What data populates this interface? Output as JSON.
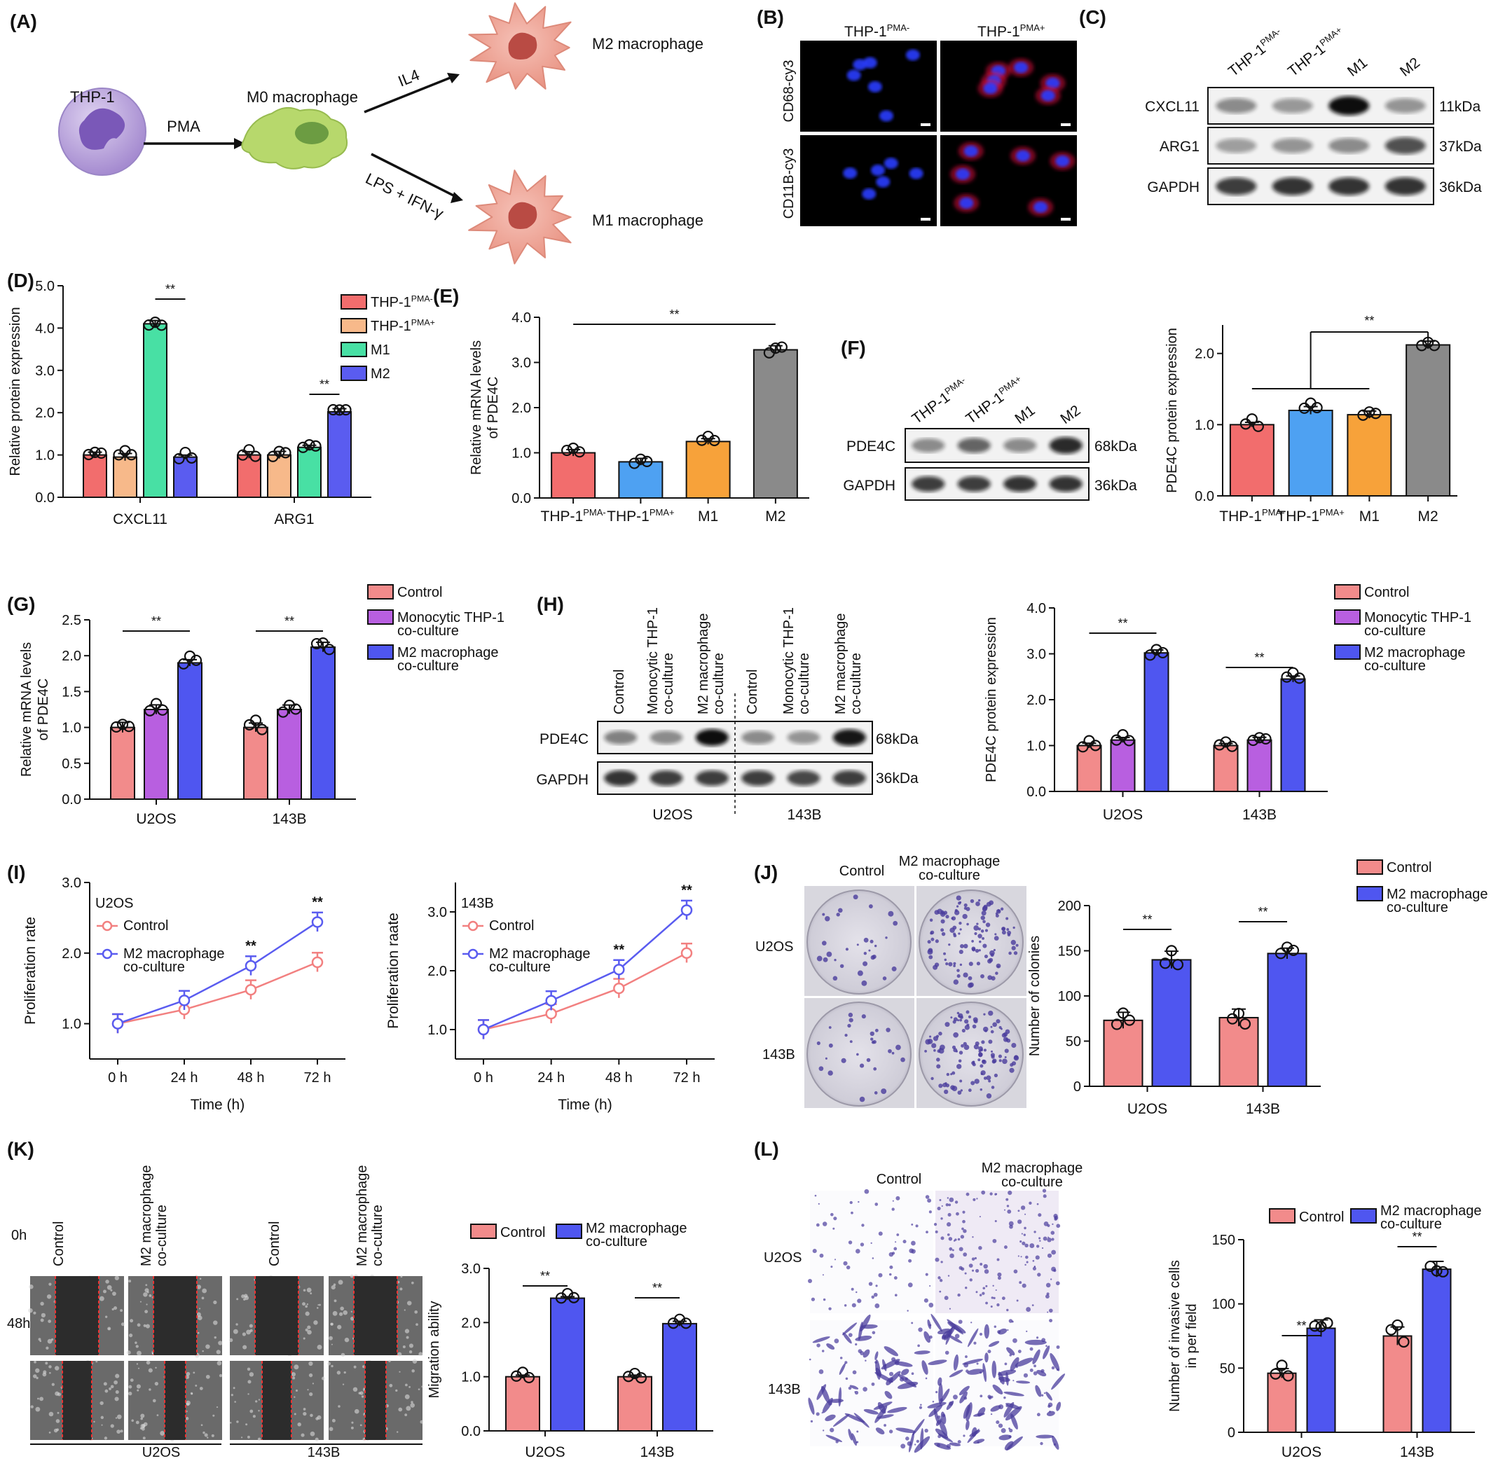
{
  "colors": {
    "thp_pma_minus": "#f26d6d",
    "thp_pma_plus_d": "#f7b98a",
    "m1_d": "#48e0a4",
    "m2_d": "#5a5cf0",
    "m2_e": "#8a8a8a",
    "thp_pma_plus_e": "#4ea1f2",
    "m1_e": "#f7a23a",
    "control": "#f28b8b",
    "thp_mono": "#b85fe0",
    "m2_coculture": "#4f56f0",
    "control_line": "#f28080",
    "m2_line": "#5a5cf0",
    "pink_cell": "#f0a89c",
    "thp_cell": "#b9a4dc",
    "m0_cell": "#b6d96a",
    "fluor_nucleus": "#2a3cff",
    "fluor_red": "#e01040",
    "stain": "#4a3c9c"
  },
  "panels": {
    "A": {
      "label": "(A)",
      "thp1": "THP-1",
      "pma": "PMA",
      "m0": "M0 macrophage",
      "il4": "IL4",
      "lps": "LPS + IFN-γ",
      "m2": "M2 macrophage",
      "m1": "M1 macrophage",
      "icons": [
        "thp1-cell-icon",
        "m0-macrophage-icon",
        "m2-macrophage-icon",
        "m1-macrophage-icon"
      ]
    },
    "B": {
      "label": "(B)",
      "col1": "THP-1",
      "col1_sup": "PMA-",
      "col2": "THP-1",
      "col2_sup": "PMA+",
      "row1": "CD68-cy3",
      "row2": "CD11B-cy3"
    },
    "C": {
      "label": "(C)",
      "lanes": [
        {
          "main": "THP-1",
          "sup": "PMA-"
        },
        {
          "main": "THP-1",
          "sup": "PMA+"
        },
        {
          "main": "M1",
          "sup": ""
        },
        {
          "main": "M2",
          "sup": ""
        }
      ],
      "rows": [
        {
          "name": "CXCL11",
          "kda": "11kDa"
        },
        {
          "name": "ARG1",
          "kda": "37kDa"
        },
        {
          "name": "GAPDH",
          "kda": "36kDa"
        }
      ]
    },
    "F_blot": {
      "label": "(F)",
      "lanes": [
        {
          "main": "THP-1",
          "sup": "PMA-"
        },
        {
          "main": "THP-1",
          "sup": "PMA+"
        },
        {
          "main": "M1",
          "sup": ""
        },
        {
          "main": "M2",
          "sup": ""
        }
      ],
      "rows": [
        {
          "name": "PDE4C",
          "kda": "68kDa"
        },
        {
          "name": "GAPDH",
          "kda": "36kDa"
        }
      ]
    },
    "H_blot": {
      "label": "(H)",
      "lanes": [
        "Control",
        "Monocytic THP-1|co-culture",
        "M2 macrophage|co-culture",
        "Control",
        "Monocytic THP-1|co-culture",
        "M2 macrophage|co-culture"
      ],
      "rows": [
        {
          "name": "PDE4C",
          "kda": "68kDa"
        },
        {
          "name": "GAPDH",
          "kda": "36kDa"
        }
      ],
      "groups": [
        "U2OS",
        "143B"
      ]
    },
    "J_images": {
      "label": "(J)",
      "col1": "Control",
      "col2": "M2 macrophage|co-culture",
      "row1": "U2OS",
      "row2": "143B"
    },
    "K_images": {
      "label": "(K)",
      "cols": [
        "Control",
        "M2 macrophage|co-culture",
        "Control",
        "M2 macrophage|co-culture"
      ],
      "rows": [
        "0h",
        "48h"
      ],
      "groups": [
        "U2OS",
        "143B"
      ]
    },
    "L_images": {
      "label": "(L)",
      "col1": "Control",
      "col2": "M2 macrophage|co-culture",
      "row1": "U2OS",
      "row2": "143B"
    },
    "I": {
      "label": "(I)"
    },
    "D": {
      "label": "(D)"
    },
    "E": {
      "label": "(E)"
    },
    "G": {
      "label": "(G)"
    }
  },
  "chart_data": [
    {
      "id": "D",
      "type": "bar",
      "ylabel": "Relative protein expression",
      "ylim": [
        0,
        5
      ],
      "yticks": [
        "0.0",
        "1.0",
        "2.0",
        "3.0",
        "4.0",
        "5.0"
      ],
      "categories": [
        "CXCL11",
        "ARG1"
      ],
      "series": [
        {
          "name": "THP-1",
          "sup": "PMA-",
          "values": [
            1.0,
            1.0
          ]
        },
        {
          "name": "THP-1",
          "sup": "PMA+",
          "values": [
            0.95,
            1.0
          ]
        },
        {
          "name": "M1",
          "sup": "",
          "values": [
            4.1,
            1.18
          ]
        },
        {
          "name": "M2",
          "sup": "",
          "values": [
            0.95,
            2.02
          ]
        }
      ],
      "significance": [
        "**",
        "**"
      ],
      "legend": "top-right"
    },
    {
      "id": "E",
      "type": "bar",
      "ylabel": "Relative mRNA levels|of PDE4C",
      "ylim": [
        0,
        4
      ],
      "yticks": [
        "0.0",
        "1.0",
        "2.0",
        "3.0",
        "4.0"
      ],
      "categories": [
        {
          "main": "THP-1",
          "sup": "PMA-"
        },
        {
          "main": "THP-1",
          "sup": "PMA+"
        },
        {
          "main": "M1",
          "sup": ""
        },
        {
          "main": "M2",
          "sup": ""
        }
      ],
      "values": [
        1.0,
        0.8,
        1.25,
        3.28
      ],
      "significance": "**"
    },
    {
      "id": "F",
      "type": "bar",
      "ylabel": "PDE4C protein expression",
      "ylim": [
        0,
        2.4
      ],
      "yticks": [
        "0.0",
        "1.0",
        "2.0"
      ],
      "categories": [
        {
          "main": "THP-1",
          "sup": "PMA-"
        },
        {
          "main": "THP-1",
          "sup": "PMA+"
        },
        {
          "main": "M1",
          "sup": ""
        },
        {
          "main": "M2",
          "sup": ""
        }
      ],
      "values": [
        1.0,
        1.2,
        1.14,
        2.12
      ],
      "significance": "**"
    },
    {
      "id": "G",
      "type": "bar",
      "ylabel": "Relative mRNA levels|of PDE4C",
      "ylim": [
        0,
        2.5
      ],
      "yticks": [
        "0.0",
        "0.5",
        "1.0",
        "1.5",
        "2.0",
        "2.5"
      ],
      "categories": [
        "U2OS",
        "143B"
      ],
      "series": [
        {
          "name": "Control",
          "values": [
            1.0,
            1.0
          ]
        },
        {
          "name": "Monocytic THP-1|co-culture",
          "values": [
            1.25,
            1.25
          ]
        },
        {
          "name": "M2 macrophage|co-culture",
          "values": [
            1.9,
            2.12
          ]
        }
      ],
      "significance": [
        "**",
        "**"
      ],
      "legend": "top-right"
    },
    {
      "id": "H",
      "type": "bar",
      "ylabel": "PDE4C protein expression",
      "ylim": [
        0,
        4
      ],
      "yticks": [
        "0.0",
        "1.0",
        "2.0",
        "3.0",
        "4.0"
      ],
      "categories": [
        "U2OS",
        "143B"
      ],
      "series": [
        {
          "name": "Control",
          "values": [
            1.0,
            1.0
          ]
        },
        {
          "name": "Monocytic THP-1|co-culture",
          "values": [
            1.12,
            1.12
          ]
        },
        {
          "name": "M2 macrophage|co-culture",
          "values": [
            3.02,
            2.45
          ]
        }
      ],
      "significance": [
        "**",
        "**"
      ],
      "legend": "top-right"
    },
    {
      "id": "I1",
      "type": "line",
      "title": "U2OS",
      "xlabel": "Time (h)",
      "ylabel": "Proliferation rate",
      "x": [
        "0 h",
        "24 h",
        "48 h",
        "72 h"
      ],
      "ylim": [
        0.5,
        3.0
      ],
      "yticks": [
        "1.0",
        "2.0",
        "3.0"
      ],
      "series": [
        {
          "name": "Control",
          "values": [
            1.0,
            1.2,
            1.48,
            1.87
          ]
        },
        {
          "name": "M2 macrophage|co-culture",
          "values": [
            1.0,
            1.33,
            1.82,
            2.44
          ]
        }
      ],
      "significance": [
        "",
        "",
        "**",
        "**"
      ]
    },
    {
      "id": "I2",
      "type": "line",
      "title": "143B",
      "xlabel": "Time (h)",
      "ylabel": "Proliferation raate",
      "x": [
        "0 h",
        "24 h",
        "48 h",
        "72 h"
      ],
      "ylim": [
        0.5,
        3.5
      ],
      "yticks": [
        "1.0",
        "2.0",
        "3.0"
      ],
      "series": [
        {
          "name": "Control",
          "values": [
            1.0,
            1.27,
            1.7,
            2.3
          ]
        },
        {
          "name": "M2 macrophage|co-culture",
          "values": [
            1.0,
            1.49,
            2.02,
            3.03
          ]
        }
      ],
      "significance": [
        "",
        "",
        "**",
        "**"
      ]
    },
    {
      "id": "J",
      "type": "bar",
      "ylabel": "Number of colonies",
      "ylim": [
        0,
        200
      ],
      "yticks": [
        "0",
        "50",
        "100",
        "150",
        "200"
      ],
      "categories": [
        "U2OS",
        "143B"
      ],
      "series": [
        {
          "name": "Control",
          "values": [
            73,
            76
          ]
        },
        {
          "name": "M2 macrophage|co-culture",
          "values": [
            140,
            147
          ]
        }
      ],
      "significance": [
        "**",
        "**"
      ],
      "legend": "top-right"
    },
    {
      "id": "K",
      "type": "bar",
      "ylabel": "Migration ability",
      "ylim": [
        0,
        3
      ],
      "yticks": [
        "0.0",
        "1.0",
        "2.0",
        "3.0"
      ],
      "categories": [
        "U2OS",
        "143B"
      ],
      "series": [
        {
          "name": "Control",
          "values": [
            1.0,
            1.0
          ]
        },
        {
          "name": "M2 macrophage|co-culture",
          "values": [
            2.45,
            1.98
          ]
        }
      ],
      "significance": [
        "**",
        "**"
      ],
      "legend": "top"
    },
    {
      "id": "L",
      "type": "bar",
      "ylabel": "Number of invasive cells|in per field",
      "ylim": [
        0,
        150
      ],
      "yticks": [
        "0",
        "50",
        "100",
        "150"
      ],
      "categories": [
        "U2OS",
        "143B"
      ],
      "series": [
        {
          "name": "Control",
          "values": [
            46,
            75
          ]
        },
        {
          "name": "M2 macrophage|co-culture",
          "values": [
            81,
            127
          ]
        }
      ],
      "significance": [
        "**",
        "**"
      ],
      "legend": "top"
    }
  ]
}
